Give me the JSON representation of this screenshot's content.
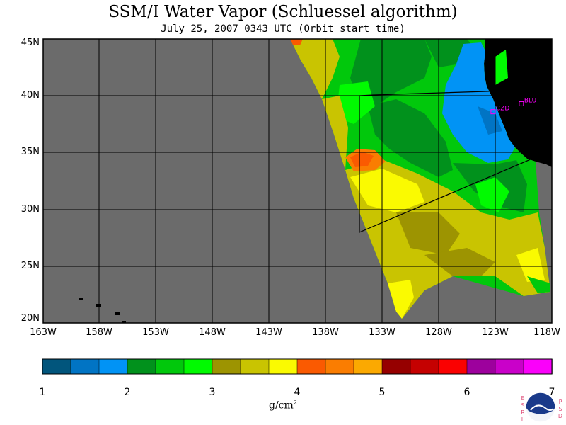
{
  "title": "SSM/I Water Vapor (Schluessel algorithm)",
  "subtitle": "July 25, 2007  0343 UTC  (Orbit start time)",
  "map": {
    "lat_labels": [
      "45N",
      "40N",
      "35N",
      "30N",
      "25N",
      "20N"
    ],
    "lon_labels": [
      "163W",
      "158W",
      "153W",
      "148W",
      "143W",
      "138W",
      "133W",
      "128W",
      "123W",
      "118W"
    ],
    "lat_range": [
      20,
      45
    ],
    "lon_range": [
      -163,
      -118
    ],
    "stations": [
      {
        "id": "CZD",
        "lat": 38.6,
        "lon": -123.2
      },
      {
        "id": "BLU",
        "lat": 39.3,
        "lon": -120.7
      }
    ]
  },
  "colorbar": {
    "ticks": [
      "1",
      "2",
      "3",
      "4",
      "5",
      "6",
      "7"
    ],
    "unit_base": "g/cm",
    "unit_sup": "2",
    "range": [
      1,
      7
    ],
    "colors": [
      "#01557c",
      "#0174c4",
      "#0193f5",
      "#01911c",
      "#01c80c",
      "#01fa01",
      "#9d9401",
      "#c9c401",
      "#fafa01",
      "#fa5a01",
      "#fa7d01",
      "#fba901",
      "#960000",
      "#c50101",
      "#fa0101",
      "#9d019d",
      "#c901c9",
      "#fa01fa"
    ]
  },
  "logo": {
    "agency": "NOAA",
    "left_letters": [
      "E",
      "S",
      "R",
      "L"
    ],
    "right_letters": [
      "P",
      "S",
      "D"
    ]
  }
}
